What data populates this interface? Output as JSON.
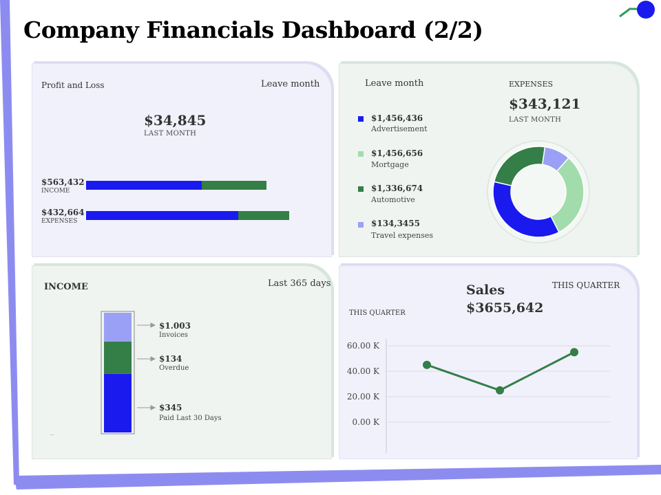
{
  "title": "Company Financials Dashboard (2/2)",
  "colors": {
    "blue": "#1a1aef",
    "green": "#347e47",
    "light_green": "#a3dcac",
    "lavender": "#9aa0f5",
    "frame": "#8c8cf0"
  },
  "profit_loss": {
    "label": "Profit and Loss",
    "period": "Leave month",
    "amount": "$34,845",
    "amount_caption": "LAST MONTH",
    "bars": [
      {
        "value_label": "$563,432",
        "caption": "INCOME",
        "blue_fraction": 0.64,
        "green_fraction": 0.36
      },
      {
        "value_label": "$432,664",
        "caption": "EXPENSES",
        "blue_fraction": 0.75,
        "green_fraction": 0.25
      }
    ]
  },
  "expenses": {
    "period": "Leave month",
    "label": "EXPENSES",
    "amount": "$343,121",
    "amount_caption": "LAST MONTH",
    "items": [
      {
        "value": "$1,456,436",
        "name": "Advertisement",
        "color": "#1a1aef"
      },
      {
        "value": "$1,456,656",
        "name": "Mortgage",
        "color": "#a3dcac"
      },
      {
        "value": "$1,336,674",
        "name": "Automotive",
        "color": "#347e47"
      },
      {
        "value": "$134,3455",
        "name": "Travel expenses",
        "color": "#9aa0f5"
      }
    ]
  },
  "income": {
    "label": "INCOME",
    "period": "Last 365 days",
    "items": [
      {
        "value": "$1.003",
        "name": "Invoices",
        "color": "#9aa0f5"
      },
      {
        "value": "$134",
        "name": "Overdue",
        "color": "#347e47"
      },
      {
        "value": "$345",
        "name": "Paid Last 30 Days",
        "color": "#1a1aef"
      }
    ],
    "dash": "–"
  },
  "sales": {
    "label": "Sales",
    "amount": "$3655,642",
    "period_right": "THIS QUARTER",
    "period_left": "THIS QUARTER"
  },
  "chart_data": [
    {
      "type": "pie",
      "donut": true,
      "labels": [
        "Advertisement",
        "Mortgage",
        "Automotive",
        "Travel expenses"
      ],
      "values": [
        35,
        30,
        23,
        9
      ],
      "colors": [
        "#1a1aef",
        "#a3dcac",
        "#347e47",
        "#9aa0f5"
      ]
    },
    {
      "type": "bar",
      "stacked": true,
      "categories": [
        "INCOME"
      ],
      "series": [
        {
          "name": "Paid Last 30 Days",
          "values": [
            345
          ],
          "color": "#1a1aef"
        },
        {
          "name": "Overdue",
          "values": [
            134
          ],
          "color": "#347e47"
        },
        {
          "name": "Invoices",
          "values": [
            1003
          ],
          "color": "#9aa0f5"
        }
      ],
      "segment_fractions": [
        0.49,
        0.27,
        0.24
      ]
    },
    {
      "type": "line",
      "x": [
        1,
        2,
        3
      ],
      "values": [
        45,
        25,
        55
      ],
      "ylim": [
        0,
        60
      ],
      "yticks": [
        "0.00 K",
        "20.00 K",
        "40.00 K",
        "60.00 K"
      ],
      "ytick_values": [
        0,
        20,
        40,
        60
      ],
      "color": "#347e47"
    }
  ]
}
